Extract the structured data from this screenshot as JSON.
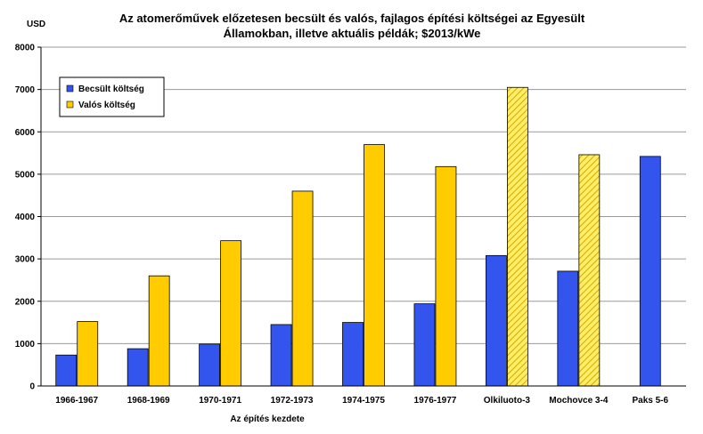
{
  "chart_data": {
    "type": "bar",
    "title_line1": "Az atomerőművek előzetesen becsült és valós, fajlagos építési költségei az Egyesült",
    "title_line2": "Államokban, illetve aktuális példák; $2013/kWe",
    "unit_label": "USD",
    "xlabel": "Az építés kezdete",
    "ylabel": "",
    "ylim": [
      0,
      8000
    ],
    "yticks": [
      0,
      1000,
      2000,
      3000,
      4000,
      5000,
      6000,
      7000,
      8000
    ],
    "grid": true,
    "legend_position": "top-left",
    "categories": [
      "1966-1967",
      "1968-1969",
      "1970-1971",
      "1972-1973",
      "1974-1975",
      "1976-1977",
      "Olkiluoto-3",
      "Mochovce 3-4",
      "Paks 5-6"
    ],
    "series": [
      {
        "name": "Becsült költség",
        "color": "#3355ee",
        "values": [
          730,
          880,
          990,
          1450,
          1500,
          1940,
          3080,
          2710,
          5420
        ]
      },
      {
        "name": "Valós költség",
        "color": "#ffcc00",
        "values": [
          1520,
          2600,
          3430,
          4600,
          5700,
          5180,
          7050,
          5460,
          null
        ],
        "hatched": [
          false,
          false,
          false,
          false,
          false,
          false,
          true,
          true,
          false
        ]
      }
    ]
  }
}
